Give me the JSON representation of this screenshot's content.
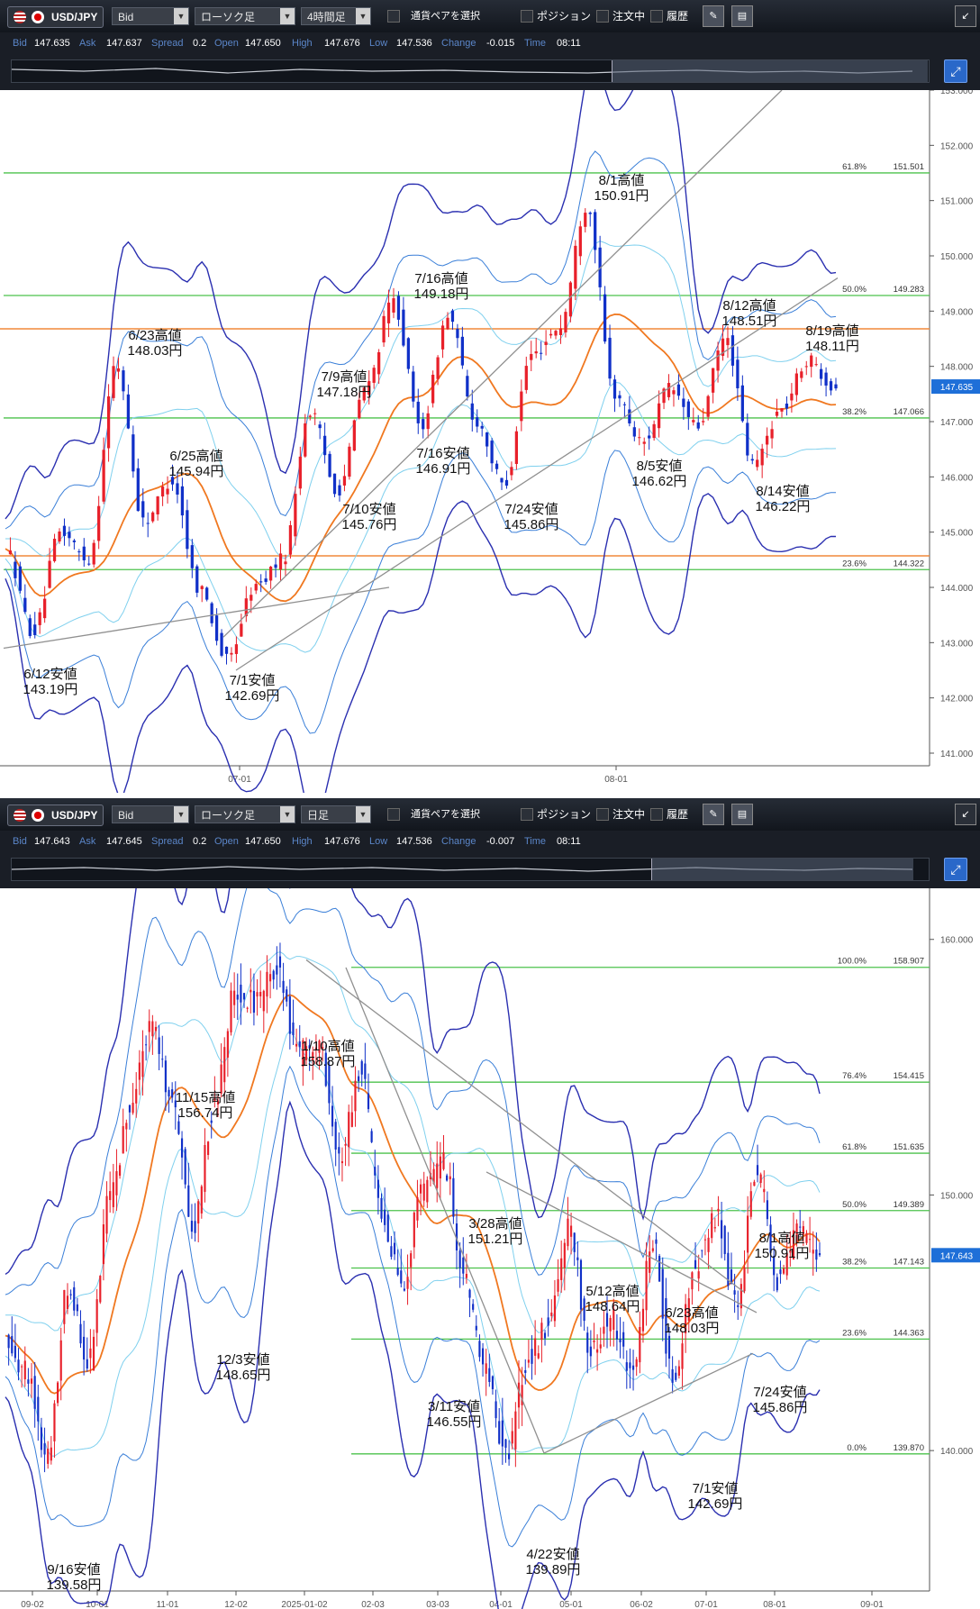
{
  "panels": [
    {
      "toolbar": {
        "pair": "USD/JPY",
        "price_type": "Bid",
        "chart_style": "ローソク足",
        "timeframe": "4時間足",
        "pair_select": "通貨ペアを選択",
        "position": "ポジション",
        "orders": "注文中",
        "history": "履歴"
      },
      "info": {
        "bid_label": "Bid",
        "bid": "147.635",
        "ask_label": "Ask",
        "ask": "147.637",
        "spread_label": "Spread",
        "spread": "0.2",
        "open_label": "Open",
        "open": "147.650",
        "high_label": "High",
        "high": "147.676",
        "low_label": "Low",
        "low": "147.536",
        "change_label": "Change",
        "change": "-0.015",
        "time_label": "Time",
        "time": "08:11"
      }
    },
    {
      "toolbar": {
        "pair": "USD/JPY",
        "price_type": "Bid",
        "chart_style": "ローソク足",
        "timeframe": "日足",
        "pair_select": "通貨ペアを選択",
        "position": "ポジション",
        "orders": "注文中",
        "history": "履歴"
      },
      "info": {
        "bid_label": "Bid",
        "bid": "147.643",
        "ask_label": "Ask",
        "ask": "147.645",
        "spread_label": "Spread",
        "spread": "0.2",
        "open_label": "Open",
        "open": "147.650",
        "high_label": "High",
        "high": "147.676",
        "low_label": "Low",
        "low": "147.536",
        "change_label": "Change",
        "change": "-0.007",
        "time_label": "Time",
        "time": "08:11"
      }
    }
  ],
  "colors": {
    "bull": "#e8202a",
    "bear": "#1030c8",
    "fib": "#4cc24c",
    "resist": "#f0883a",
    "ma": "#f07820",
    "bb_outer": "#2a2fb0",
    "bb_mid": "#3a7fd8",
    "bb_inner": "#7fd0ee",
    "trend": "#909090",
    "price_tag": "#1e6fd8"
  },
  "chart_data": [
    {
      "type": "candlestick",
      "timeframe": "4時間足",
      "ylim": [
        141.0,
        153.0
      ],
      "yticks": [
        "141.000",
        "142.000",
        "143.000",
        "144.000",
        "145.000",
        "146.000",
        "147.000",
        "148.000",
        "149.000",
        "150.000",
        "151.000",
        "152.000",
        "153.000"
      ],
      "xticks": [
        "07-01",
        "08-01"
      ],
      "current_price": "147.635",
      "fib_levels": [
        {
          "label": "61.8%",
          "value": "151.501"
        },
        {
          "label": "50.0%",
          "value": "149.283"
        },
        {
          "label": "38.2%",
          "value": "147.066"
        },
        {
          "label": "23.6%",
          "value": "144.322"
        }
      ],
      "resistance_levels": [
        148.68,
        144.57
      ],
      "annotations": [
        {
          "date": "6/12",
          "label": "6/12安値",
          "price": "143.19円"
        },
        {
          "date": "6/23",
          "label": "6/23高値",
          "price": "148.03円"
        },
        {
          "date": "6/25",
          "label": "6/25高値",
          "price": "145.94円"
        },
        {
          "date": "7/1",
          "label": "7/1安値",
          "price": "142.69円"
        },
        {
          "date": "7/9",
          "label": "7/9高値",
          "price": "147.18円"
        },
        {
          "date": "7/10",
          "label": "7/10安値",
          "price": "145.76円"
        },
        {
          "date": "7/16",
          "label": "7/16高値",
          "price": "149.18円"
        },
        {
          "date": "7/16",
          "label": "7/16安値",
          "price": "146.91円"
        },
        {
          "date": "7/24",
          "label": "7/24安値",
          "price": "145.86円"
        },
        {
          "date": "8/1",
          "label": "8/1高値",
          "price": "150.91円"
        },
        {
          "date": "8/5",
          "label": "8/5安値",
          "price": "146.62円"
        },
        {
          "date": "8/12",
          "label": "8/12高値",
          "price": "148.51円"
        },
        {
          "date": "8/14",
          "label": "8/14安値",
          "price": "146.22円"
        },
        {
          "date": "8/19",
          "label": "8/19高値",
          "price": "148.11円"
        }
      ],
      "pivots": [
        [
          "06-10",
          144.7
        ],
        [
          "06-12",
          143.19
        ],
        [
          "06-16",
          145.0
        ],
        [
          "06-19",
          144.5
        ],
        [
          "06-23",
          148.03
        ],
        [
          "06-24",
          145.2
        ],
        [
          "06-25",
          145.94
        ],
        [
          "06-27",
          144.0
        ],
        [
          "07-01",
          142.69
        ],
        [
          "07-03",
          144.0
        ],
        [
          "07-04",
          144.5
        ],
        [
          "07-09",
          147.18
        ],
        [
          "07-10",
          145.76
        ],
        [
          "07-14",
          147.6
        ],
        [
          "07-16",
          149.18
        ],
        [
          "07-16b",
          146.91
        ],
        [
          "07-18",
          148.9
        ],
        [
          "07-22",
          147.0
        ],
        [
          "07-24",
          145.86
        ],
        [
          "07-28",
          148.2
        ],
        [
          "07-30",
          148.7
        ],
        [
          "08-01",
          150.91
        ],
        [
          "08-04",
          147.5
        ],
        [
          "08-05",
          146.62
        ],
        [
          "08-07",
          147.6
        ],
        [
          "08-08",
          146.9
        ],
        [
          "08-12",
          148.51
        ],
        [
          "08-14",
          146.22
        ],
        [
          "08-15",
          147.2
        ],
        [
          "08-19",
          148.11
        ],
        [
          "08-20",
          147.635
        ]
      ]
    },
    {
      "type": "candlestick",
      "timeframe": "日足",
      "ylim": [
        135.0,
        162.0
      ],
      "yticks": [
        "140.000",
        "150.000",
        "160.000"
      ],
      "xticks": [
        "09-02",
        "10-01",
        "11-01",
        "12-02",
        "2025-01-02",
        "02-03",
        "03-03",
        "04-01",
        "05-01",
        "06-02",
        "07-01",
        "08-01",
        "09-01"
      ],
      "current_price": "147.643",
      "fib_levels": [
        {
          "label": "100.0%",
          "value": "158.907"
        },
        {
          "label": "76.4%",
          "value": "154.415"
        },
        {
          "label": "61.8%",
          "value": "151.635"
        },
        {
          "label": "50.0%",
          "value": "149.389"
        },
        {
          "label": "38.2%",
          "value": "147.143"
        },
        {
          "label": "23.6%",
          "value": "144.363"
        },
        {
          "label": "0.0%",
          "value": "139.870"
        }
      ],
      "annotations": [
        {
          "date": "9/16",
          "label": "9/16安値",
          "price": "139.58円"
        },
        {
          "date": "11/15",
          "label": "11/15高値",
          "price": "156.74円"
        },
        {
          "date": "12/3",
          "label": "12/3安値",
          "price": "148.65円"
        },
        {
          "date": "1/10",
          "label": "1/10高値",
          "price": "158.87円"
        },
        {
          "date": "3/11",
          "label": "3/11安値",
          "price": "146.55円"
        },
        {
          "date": "3/28",
          "label": "3/28高値",
          "price": "151.21円"
        },
        {
          "date": "4/22",
          "label": "4/22安値",
          "price": "139.89円"
        },
        {
          "date": "5/12",
          "label": "5/12高値",
          "price": "148.64円"
        },
        {
          "date": "6/23",
          "label": "6/23高値",
          "price": "148.03円"
        },
        {
          "date": "7/1",
          "label": "7/1安値",
          "price": "142.69円"
        },
        {
          "date": "7/24",
          "label": "7/24安値",
          "price": "145.86円"
        },
        {
          "date": "8/1",
          "label": "8/1高値",
          "price": "150.91円"
        }
      ],
      "pivots": [
        [
          "08-26",
          144.5
        ],
        [
          "09-04",
          143.0
        ],
        [
          "09-16",
          139.58
        ],
        [
          "09-27",
          146.5
        ],
        [
          "10-01",
          143.5
        ],
        [
          "10-15",
          150.0
        ],
        [
          "10-31",
          153.5
        ],
        [
          "11-15",
          156.74
        ],
        [
          "11-25",
          153.5
        ],
        [
          "12-03",
          148.65
        ],
        [
          "12-12",
          153.5
        ],
        [
          "12-20",
          157.9
        ],
        [
          "12-27",
          157.5
        ],
        [
          "01-10",
          158.87
        ],
        [
          "01-17",
          155.5
        ],
        [
          "01-24",
          155.9
        ],
        [
          "02-07",
          151.3
        ],
        [
          "02-12",
          154.8
        ],
        [
          "02-24",
          149.1
        ],
        [
          "03-11",
          146.55
        ],
        [
          "03-19",
          150.2
        ],
        [
          "03-28",
          151.21
        ],
        [
          "04-04",
          146.5
        ],
        [
          "04-11",
          143.0
        ],
        [
          "04-22",
          139.89
        ],
        [
          "04-28",
          143.5
        ],
        [
          "05-02",
          144.9
        ],
        [
          "05-12",
          148.64
        ],
        [
          "05-20",
          144.0
        ],
        [
          "05-29",
          145.2
        ],
        [
          "06-03",
          143.3
        ],
        [
          "06-23",
          148.03
        ],
        [
          "07-01",
          142.69
        ],
        [
          "07-09",
          147.18
        ],
        [
          "07-16",
          149.18
        ],
        [
          "07-24",
          145.86
        ],
        [
          "08-01",
          150.91
        ],
        [
          "08-05",
          146.62
        ],
        [
          "08-12",
          148.51
        ],
        [
          "08-20",
          147.643
        ]
      ]
    }
  ]
}
